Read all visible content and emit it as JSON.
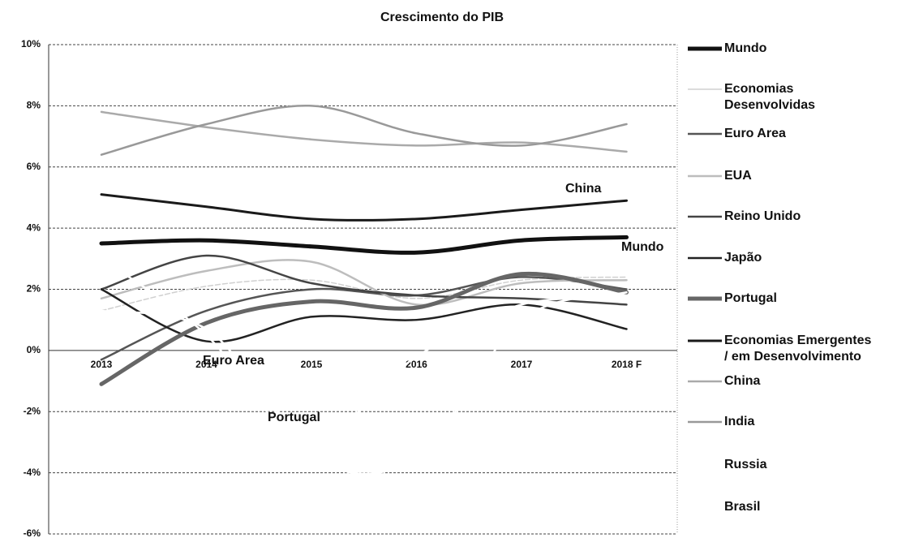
{
  "chart_data": {
    "type": "line",
    "title": "Crescimento do PIB",
    "categories": [
      "2013",
      "2014",
      "2015",
      "2016",
      "2017",
      "2018 F"
    ],
    "ylim": [
      -6,
      10
    ],
    "yticks": [
      {
        "value": -6,
        "label": "-6%"
      },
      {
        "value": -4,
        "label": "-4%"
      },
      {
        "value": -2,
        "label": "-2%"
      },
      {
        "value": 0,
        "label": "0%"
      },
      {
        "value": 2,
        "label": "2%"
      },
      {
        "value": 4,
        "label": "4%"
      },
      {
        "value": 6,
        "label": "6%"
      },
      {
        "value": 8,
        "label": "8%"
      },
      {
        "value": 10,
        "label": "10%"
      }
    ],
    "grid": true,
    "legend": "right",
    "series": [
      {
        "name": "Mundo",
        "color": "#111111",
        "values": [
          3.5,
          3.6,
          3.4,
          3.2,
          3.6,
          3.7
        ]
      },
      {
        "name": "Economias\nDesenvolvidas",
        "color": "#d0d0d0",
        "values": [
          1.3,
          2.1,
          2.3,
          1.7,
          2.3,
          2.4
        ]
      },
      {
        "name": "Euro Area",
        "color": "#555555",
        "values": [
          -0.3,
          1.3,
          2.0,
          1.8,
          2.4,
          2.0
        ]
      },
      {
        "name": "EUA",
        "color": "#bdbdbd",
        "values": [
          1.7,
          2.6,
          2.9,
          1.5,
          2.2,
          2.3
        ]
      },
      {
        "name": "Reino Unido",
        "color": "#444444",
        "values": [
          2.0,
          3.1,
          2.2,
          1.8,
          1.7,
          1.5
        ]
      },
      {
        "name": "Japão",
        "color": "#222222",
        "values": [
          2.0,
          0.3,
          1.1,
          1.0,
          1.5,
          0.7
        ]
      },
      {
        "name": "Portugal",
        "color": "#666666",
        "values": [
          -1.1,
          0.9,
          1.6,
          1.4,
          2.5,
          1.9
        ]
      },
      {
        "name": "Economias Emergentes\n/ em Desenvolvimento",
        "color": "#1a1a1a",
        "values": [
          5.1,
          4.7,
          4.3,
          4.3,
          4.6,
          4.9
        ]
      },
      {
        "name": "China",
        "color": "#aaaaaa",
        "values": [
          7.8,
          7.3,
          6.9,
          6.7,
          6.8,
          6.5
        ]
      },
      {
        "name": "India",
        "color": "#999999",
        "values": [
          6.4,
          7.4,
          8.0,
          7.1,
          6.7,
          7.4
        ]
      },
      {
        "name": "Russia",
        "color": "#ffffff",
        "values": [
          1.3,
          0.7,
          -2.8,
          -0.2,
          1.5,
          1.7
        ]
      },
      {
        "name": "Brasil",
        "color": "#ffffff",
        "values": [
          3.0,
          0.5,
          -3.5,
          -3.5,
          1.0,
          1.9
        ]
      }
    ],
    "annotations": [
      "China",
      "Mundo",
      "Euro Area",
      "Portugal"
    ]
  }
}
